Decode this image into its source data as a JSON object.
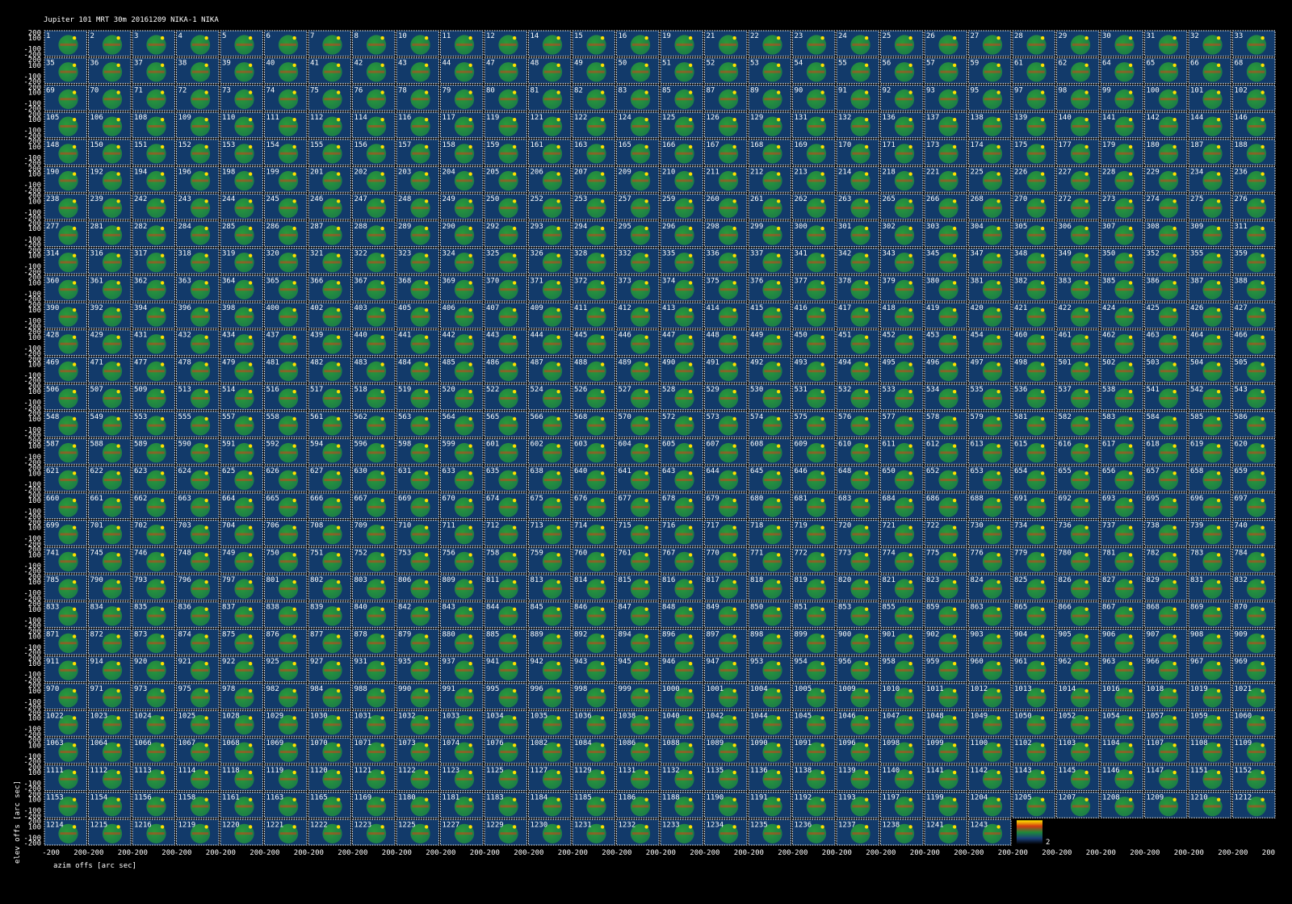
{
  "title": "Jupiter  101 MRT 30m  20161209 NIKA-1 NIKA",
  "x_label": "azim offs [arc sec]",
  "y_label": "elev offs [arc sec]",
  "x_ticks": [
    -200,
    200
  ],
  "y_ticks": [
    200,
    100,
    -100,
    -200
  ],
  "colorbar_tick": "2",
  "panels": [
    [
      1,
      2,
      3,
      4,
      5,
      6,
      7,
      8,
      10,
      11,
      12,
      14,
      15,
      16,
      19,
      21,
      22,
      23,
      24,
      25,
      26,
      27,
      28,
      29,
      30,
      31,
      32,
      33
    ],
    [
      35,
      36,
      37,
      38,
      39,
      40,
      41,
      42,
      43,
      44,
      47,
      48,
      49,
      50,
      51,
      52,
      53,
      54,
      55,
      56,
      57,
      59,
      61,
      62,
      64,
      65,
      66,
      68
    ],
    [
      69,
      70,
      71,
      72,
      73,
      74,
      75,
      76,
      78,
      79,
      80,
      81,
      82,
      83,
      85,
      87,
      89,
      90,
      91,
      92,
      93,
      95,
      97,
      98,
      99,
      100,
      101,
      102
    ],
    [
      105,
      106,
      108,
      109,
      110,
      111,
      112,
      114,
      116,
      117,
      119,
      121,
      122,
      124,
      125,
      126,
      129,
      131,
      132,
      136,
      137,
      138,
      139,
      140,
      141,
      142,
      144,
      146
    ],
    [
      148,
      150,
      151,
      152,
      153,
      154,
      155,
      156,
      157,
      158,
      159,
      161,
      163,
      165,
      166,
      167,
      168,
      169,
      170,
      171,
      173,
      174,
      175,
      177,
      179,
      180,
      187,
      188
    ],
    [
      190,
      192,
      194,
      196,
      198,
      199,
      201,
      202,
      203,
      204,
      205,
      206,
      207,
      209,
      210,
      211,
      212,
      213,
      214,
      218,
      221,
      225,
      226,
      227,
      228,
      229,
      234,
      236
    ],
    [
      238,
      239,
      242,
      243,
      244,
      245,
      246,
      247,
      248,
      249,
      250,
      252,
      253,
      257,
      259,
      260,
      261,
      262,
      263,
      265,
      266,
      268,
      270,
      272,
      273,
      274,
      275,
      276
    ],
    [
      277,
      281,
      282,
      284,
      285,
      286,
      287,
      288,
      289,
      290,
      292,
      293,
      294,
      295,
      296,
      298,
      299,
      300,
      301,
      302,
      303,
      304,
      305,
      306,
      307,
      308,
      309,
      311
    ],
    [
      314,
      316,
      317,
      318,
      319,
      320,
      321,
      322,
      323,
      324,
      325,
      326,
      328,
      332,
      335,
      336,
      337,
      341,
      342,
      343,
      345,
      347,
      348,
      349,
      350,
      352,
      355,
      359
    ],
    [
      360,
      361,
      362,
      363,
      364,
      365,
      366,
      367,
      368,
      369,
      370,
      371,
      372,
      373,
      374,
      375,
      376,
      377,
      378,
      379,
      380,
      381,
      382,
      383,
      385,
      386,
      387,
      388
    ],
    [
      390,
      392,
      394,
      396,
      398,
      400,
      402,
      403,
      405,
      406,
      407,
      409,
      411,
      412,
      413,
      414,
      415,
      416,
      417,
      418,
      419,
      420,
      421,
      422,
      424,
      425,
      426,
      427
    ],
    [
      428,
      429,
      431,
      432,
      434,
      437,
      439,
      440,
      441,
      442,
      443,
      444,
      445,
      446,
      447,
      448,
      449,
      450,
      451,
      452,
      453,
      454,
      460,
      461,
      462,
      463,
      464,
      466
    ],
    [
      469,
      471,
      477,
      478,
      479,
      481,
      482,
      483,
      484,
      485,
      486,
      487,
      488,
      489,
      490,
      491,
      492,
      493,
      494,
      495,
      496,
      497,
      498,
      501,
      502,
      503,
      504,
      505
    ],
    [
      506,
      507,
      509,
      513,
      514,
      516,
      517,
      518,
      519,
      520,
      522,
      524,
      526,
      527,
      528,
      529,
      530,
      531,
      532,
      533,
      534,
      535,
      536,
      537,
      538,
      541,
      542,
      543
    ],
    [
      548,
      549,
      553,
      555,
      557,
      558,
      561,
      562,
      563,
      564,
      565,
      566,
      568,
      570,
      572,
      573,
      574,
      575,
      576,
      577,
      578,
      579,
      581,
      582,
      583,
      584,
      585,
      586
    ],
    [
      587,
      588,
      589,
      590,
      591,
      592,
      594,
      596,
      598,
      599,
      601,
      602,
      603,
      604,
      605,
      607,
      608,
      609,
      610,
      611,
      612,
      613,
      615,
      616,
      617,
      618,
      619,
      620
    ],
    [
      621,
      622,
      623,
      624,
      625,
      626,
      627,
      630,
      631,
      633,
      635,
      638,
      640,
      641,
      643,
      644,
      645,
      646,
      648,
      650,
      652,
      653,
      654,
      655,
      656,
      657,
      658,
      659
    ],
    [
      660,
      661,
      662,
      663,
      664,
      665,
      666,
      667,
      669,
      670,
      674,
      675,
      676,
      677,
      678,
      679,
      680,
      681,
      683,
      684,
      686,
      688,
      691,
      692,
      693,
      695,
      696,
      697
    ],
    [
      699,
      701,
      702,
      703,
      704,
      706,
      708,
      709,
      710,
      711,
      712,
      713,
      714,
      715,
      716,
      717,
      718,
      719,
      720,
      721,
      722,
      730,
      734,
      736,
      737,
      738,
      739,
      740
    ],
    [
      741,
      745,
      746,
      748,
      749,
      750,
      751,
      752,
      753,
      756,
      758,
      759,
      760,
      761,
      767,
      770,
      771,
      772,
      773,
      774,
      775,
      776,
      779,
      780,
      781,
      782,
      783,
      784
    ],
    [
      785,
      790,
      793,
      796,
      797,
      801,
      802,
      803,
      806,
      809,
      811,
      813,
      814,
      815,
      816,
      817,
      818,
      819,
      820,
      821,
      823,
      824,
      825,
      826,
      827,
      829,
      831,
      832
    ],
    [
      833,
      834,
      835,
      836,
      837,
      838,
      839,
      840,
      842,
      843,
      844,
      845,
      846,
      847,
      848,
      849,
      850,
      851,
      853,
      855,
      859,
      863,
      865,
      866,
      867,
      868,
      869,
      870
    ],
    [
      871,
      872,
      873,
      874,
      875,
      876,
      877,
      878,
      879,
      880,
      885,
      889,
      892,
      894,
      896,
      897,
      898,
      899,
      900,
      901,
      902,
      903,
      904,
      905,
      906,
      907,
      908,
      909
    ],
    [
      911,
      914,
      920,
      921,
      922,
      925,
      927,
      931,
      935,
      937,
      941,
      942,
      943,
      945,
      946,
      947,
      953,
      954,
      956,
      958,
      959,
      960,
      961,
      962,
      963,
      966,
      967,
      969
    ],
    [
      970,
      971,
      973,
      975,
      978,
      982,
      984,
      988,
      990,
      991,
      995,
      996,
      998,
      999,
      1000,
      1001,
      1004,
      1005,
      1009,
      1010,
      1011,
      1012,
      1013,
      1014,
      1016,
      1018,
      1019,
      1021
    ],
    [
      1022,
      1023,
      1024,
      1025,
      1028,
      1029,
      1030,
      1031,
      1032,
      1033,
      1034,
      1035,
      1036,
      1038,
      1040,
      1042,
      1044,
      1045,
      1046,
      1047,
      1048,
      1049,
      1050,
      1052,
      1054,
      1057,
      1059,
      1060
    ],
    [
      1063,
      1064,
      1066,
      1067,
      1068,
      1069,
      1070,
      1071,
      1073,
      1074,
      1076,
      1082,
      1084,
      1086,
      1088,
      1089,
      1090,
      1091,
      1096,
      1098,
      1099,
      1100,
      1102,
      1103,
      1104,
      1107,
      1108,
      1109
    ],
    [
      1111,
      1112,
      1113,
      1114,
      1118,
      1119,
      1120,
      1121,
      1122,
      1123,
      1125,
      1127,
      1129,
      1131,
      1132,
      1135,
      1136,
      1138,
      1139,
      1140,
      1141,
      1142,
      1143,
      1145,
      1146,
      1147,
      1151,
      1152
    ],
    [
      1153,
      1154,
      1156,
      1158,
      1161,
      1163,
      1165,
      1169,
      1180,
      1181,
      1183,
      1184,
      1185,
      1186,
      1188,
      1190,
      1191,
      1192,
      1193,
      1197,
      1199,
      1204,
      1205,
      1207,
      1208,
      1209,
      1210,
      1212
    ],
    [
      1214,
      1215,
      1216,
      1219,
      1220,
      1221,
      1222,
      1223,
      1225,
      1227,
      1229,
      1230,
      1231,
      1232,
      1233,
      1234,
      1235,
      1236,
      1237,
      1238,
      1241,
      1243
    ]
  ]
}
